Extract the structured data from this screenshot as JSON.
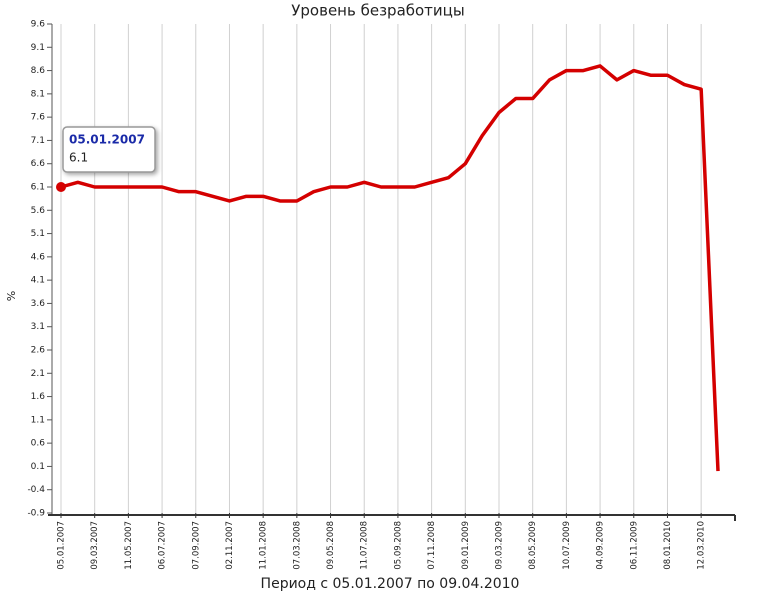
{
  "chart_data": {
    "type": "line",
    "title": "Уровень безработицы",
    "y_label": "%",
    "x_label": "Период с 05.01.2007 по 09.04.2010",
    "categories": [
      "05.01.2007",
      null,
      "09.03.2007",
      null,
      "11.05.2007",
      null,
      "06.07.2007",
      null,
      "07.09.2007",
      null,
      "02.11.2007",
      null,
      "11.01.2008",
      null,
      "07.03.2008",
      null,
      "09.05.2008",
      null,
      "11.07.2008",
      null,
      "05.09.2008",
      null,
      "07.11.2008",
      null,
      "09.01.2009",
      null,
      "09.03.2009",
      null,
      "08.05.2009",
      null,
      "10.07.2009",
      null,
      "04.09.2009",
      null,
      "06.11.2009",
      null,
      "08.01.2010",
      null,
      "12.03.2010",
      null
    ],
    "series": [
      {
        "name": "Уровень безработицы",
        "color": "#d40000",
        "values": [
          6.1,
          6.2,
          6.1,
          6.1,
          6.1,
          6.1,
          6.1,
          6.0,
          6.0,
          5.9,
          5.8,
          5.9,
          5.9,
          5.8,
          5.8,
          6.0,
          6.1,
          6.1,
          6.2,
          6.1,
          6.1,
          6.1,
          6.2,
          6.3,
          6.6,
          7.2,
          7.7,
          8.0,
          8.0,
          8.4,
          8.6,
          8.6,
          8.7,
          8.4,
          8.6,
          8.5,
          8.5,
          8.3,
          8.2,
          0.0
        ]
      }
    ],
    "ylim": [
      -0.9,
      9.6
    ],
    "yticks": [
      -0.9,
      -0.4,
      0.1,
      0.6,
      1.1,
      1.6,
      2.1,
      2.6,
      3.1,
      3.6,
      4.1,
      4.6,
      5.1,
      5.6,
      6.1,
      6.6,
      7.1,
      7.6,
      8.1,
      8.6,
      9.1,
      9.6
    ],
    "grid": true
  }
}
